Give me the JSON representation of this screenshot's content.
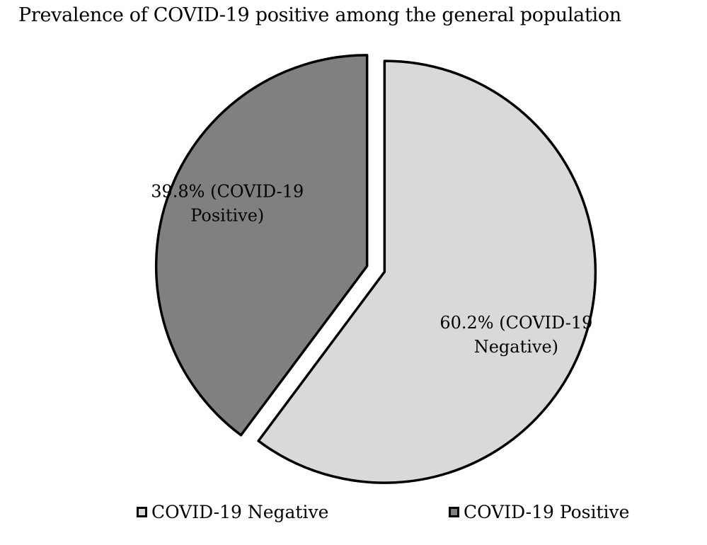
{
  "chart_data": {
    "type": "pie",
    "title": "Prevalence of COVID-19 positive among the general population",
    "slices": [
      {
        "name": "COVID-19 Negative",
        "value": 60.2,
        "label_lines": [
          "60.2% (COVID-19",
          "Negative)"
        ],
        "color": "#d9d9d9"
      },
      {
        "name": "COVID-19 Positive",
        "value": 39.8,
        "label_lines": [
          "39.8% (COVID-19",
          "Positive)"
        ],
        "color": "#808080"
      }
    ],
    "legend": {
      "placement": "bottom",
      "entries": [
        "COVID-19 Negative",
        "COVID-19 Positive"
      ]
    }
  }
}
